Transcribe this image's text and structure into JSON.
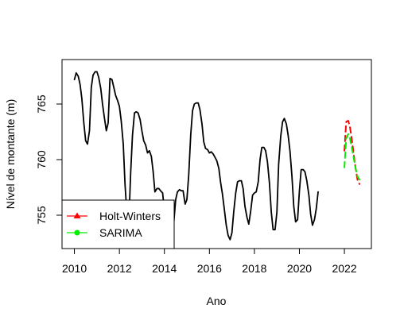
{
  "chart_data": {
    "type": "line",
    "title": "",
    "xlabel": "Ano",
    "ylabel": "Nível de montante (m)",
    "xlim": [
      2009.45,
      2023.2
    ],
    "ylim": [
      752.0,
      769.0
    ],
    "x_ticks": [
      2010,
      2012,
      2014,
      2016,
      2018,
      2020,
      2022
    ],
    "x_tick_labels": [
      "2010",
      "2012",
      "2014",
      "2016",
      "2018",
      "2020",
      "2022"
    ],
    "y_ticks": [
      755,
      760,
      765
    ],
    "y_tick_labels": [
      "755",
      "760",
      "765"
    ],
    "grid": false,
    "legend_position": "bottom-left",
    "legend": [
      {
        "label": "Holt-Winters",
        "color": "#ff0000",
        "marker": "triangle"
      },
      {
        "label": "SARIMA",
        "color": "#00ee00",
        "marker": "circle"
      }
    ],
    "series": [
      {
        "color": "#000000",
        "style": "solid",
        "points": [
          [
            2010.0,
            767.2
          ],
          [
            2010.08,
            767.8
          ],
          [
            2010.17,
            767.5
          ],
          [
            2010.25,
            766.8
          ],
          [
            2010.33,
            765.5
          ],
          [
            2010.42,
            763.3
          ],
          [
            2010.5,
            761.7
          ],
          [
            2010.58,
            761.4
          ],
          [
            2010.67,
            762.6
          ],
          [
            2010.75,
            766.5
          ],
          [
            2010.83,
            767.6
          ],
          [
            2010.92,
            767.9
          ],
          [
            2011.0,
            767.9
          ],
          [
            2011.08,
            767.4
          ],
          [
            2011.17,
            766.4
          ],
          [
            2011.25,
            765.0
          ],
          [
            2011.33,
            763.8
          ],
          [
            2011.42,
            762.6
          ],
          [
            2011.5,
            763.3
          ],
          [
            2011.58,
            767.3
          ],
          [
            2011.67,
            767.2
          ],
          [
            2011.75,
            766.5
          ],
          [
            2011.83,
            765.8
          ],
          [
            2011.92,
            765.3
          ],
          [
            2012.0,
            764.8
          ],
          [
            2012.08,
            763.5
          ],
          [
            2012.17,
            761.4
          ],
          [
            2012.25,
            757.8
          ],
          [
            2012.33,
            755.2
          ],
          [
            2012.42,
            754.4
          ],
          [
            2012.5,
            758.8
          ],
          [
            2012.58,
            762.2
          ],
          [
            2012.67,
            764.2
          ],
          [
            2012.75,
            764.3
          ],
          [
            2012.83,
            764.2
          ],
          [
            2012.92,
            763.6
          ],
          [
            2013.0,
            762.6
          ],
          [
            2013.08,
            761.7
          ],
          [
            2013.17,
            761.3
          ],
          [
            2013.25,
            760.6
          ],
          [
            2013.33,
            760.8
          ],
          [
            2013.42,
            760.3
          ],
          [
            2013.5,
            758.9
          ],
          [
            2013.58,
            757.1
          ],
          [
            2013.67,
            757.4
          ],
          [
            2013.75,
            757.4
          ],
          [
            2013.83,
            757.2
          ],
          [
            2013.92,
            757.0
          ],
          [
            2014.0,
            755.4
          ],
          [
            2014.08,
            754.4
          ],
          [
            2014.17,
            753.5
          ],
          [
            2014.25,
            753.7
          ],
          [
            2014.33,
            752.9
          ],
          [
            2014.42,
            754.4
          ],
          [
            2014.5,
            756.4
          ],
          [
            2014.58,
            757.1
          ],
          [
            2014.67,
            757.3
          ],
          [
            2014.75,
            757.2
          ],
          [
            2014.83,
            757.2
          ],
          [
            2014.92,
            756.0
          ],
          [
            2015.0,
            756.4
          ],
          [
            2015.08,
            758.6
          ],
          [
            2015.17,
            762.2
          ],
          [
            2015.25,
            764.4
          ],
          [
            2015.33,
            765.0
          ],
          [
            2015.42,
            765.1
          ],
          [
            2015.5,
            765.1
          ],
          [
            2015.58,
            764.5
          ],
          [
            2015.67,
            763.2
          ],
          [
            2015.75,
            761.6
          ],
          [
            2015.83,
            761.0
          ],
          [
            2015.92,
            760.9
          ],
          [
            2016.0,
            760.6
          ],
          [
            2016.08,
            760.7
          ],
          [
            2016.17,
            760.5
          ],
          [
            2016.25,
            760.2
          ],
          [
            2016.33,
            759.9
          ],
          [
            2016.42,
            759.2
          ],
          [
            2016.5,
            757.9
          ],
          [
            2016.58,
            756.9
          ],
          [
            2016.67,
            755.4
          ],
          [
            2016.75,
            754.1
          ],
          [
            2016.83,
            753.2
          ],
          [
            2016.92,
            752.8
          ],
          [
            2017.0,
            753.4
          ],
          [
            2017.08,
            755.3
          ],
          [
            2017.17,
            757.0
          ],
          [
            2017.25,
            758.0
          ],
          [
            2017.33,
            758.1
          ],
          [
            2017.42,
            758.1
          ],
          [
            2017.5,
            757.4
          ],
          [
            2017.58,
            755.8
          ],
          [
            2017.67,
            754.8
          ],
          [
            2017.75,
            754.2
          ],
          [
            2017.83,
            755.3
          ],
          [
            2017.92,
            756.8
          ],
          [
            2018.0,
            757.0
          ],
          [
            2018.08,
            757.1
          ],
          [
            2018.17,
            758.0
          ],
          [
            2018.25,
            760.0
          ],
          [
            2018.33,
            761.1
          ],
          [
            2018.42,
            761.1
          ],
          [
            2018.5,
            760.8
          ],
          [
            2018.58,
            759.8
          ],
          [
            2018.67,
            757.9
          ],
          [
            2018.75,
            755.3
          ],
          [
            2018.83,
            753.7
          ],
          [
            2018.92,
            753.7
          ],
          [
            2019.0,
            755.3
          ],
          [
            2019.08,
            759.6
          ],
          [
            2019.17,
            762.1
          ],
          [
            2019.25,
            763.4
          ],
          [
            2019.33,
            763.7
          ],
          [
            2019.42,
            763.2
          ],
          [
            2019.5,
            762.2
          ],
          [
            2019.58,
            760.8
          ],
          [
            2019.67,
            758.5
          ],
          [
            2019.75,
            755.8
          ],
          [
            2019.83,
            754.4
          ],
          [
            2019.92,
            754.6
          ],
          [
            2020.0,
            757.2
          ],
          [
            2020.08,
            759.1
          ],
          [
            2020.17,
            759.1
          ],
          [
            2020.25,
            758.9
          ],
          [
            2020.33,
            758.1
          ],
          [
            2020.42,
            756.8
          ],
          [
            2020.5,
            755.1
          ],
          [
            2020.58,
            754.1
          ],
          [
            2020.67,
            754.6
          ],
          [
            2020.75,
            755.6
          ],
          [
            2020.83,
            757.1
          ]
        ]
      },
      {
        "color": "#ff0000",
        "style": "dashed",
        "points": [
          [
            2022.0,
            760.8
          ],
          [
            2022.08,
            763.4
          ],
          [
            2022.17,
            763.5
          ],
          [
            2022.25,
            762.9
          ],
          [
            2022.33,
            761.8
          ],
          [
            2022.42,
            760.4
          ],
          [
            2022.5,
            759.2
          ],
          [
            2022.58,
            758.2
          ],
          [
            2022.67,
            757.8
          ]
        ]
      },
      {
        "color": "#00ee00",
        "style": "dashed",
        "points": [
          [
            2022.0,
            759.3
          ],
          [
            2022.08,
            761.9
          ],
          [
            2022.17,
            762.3
          ],
          [
            2022.25,
            761.9
          ],
          [
            2022.33,
            761.1
          ],
          [
            2022.42,
            760.1
          ],
          [
            2022.5,
            759.2
          ],
          [
            2022.58,
            758.5
          ],
          [
            2022.67,
            758.2
          ]
        ]
      }
    ]
  }
}
